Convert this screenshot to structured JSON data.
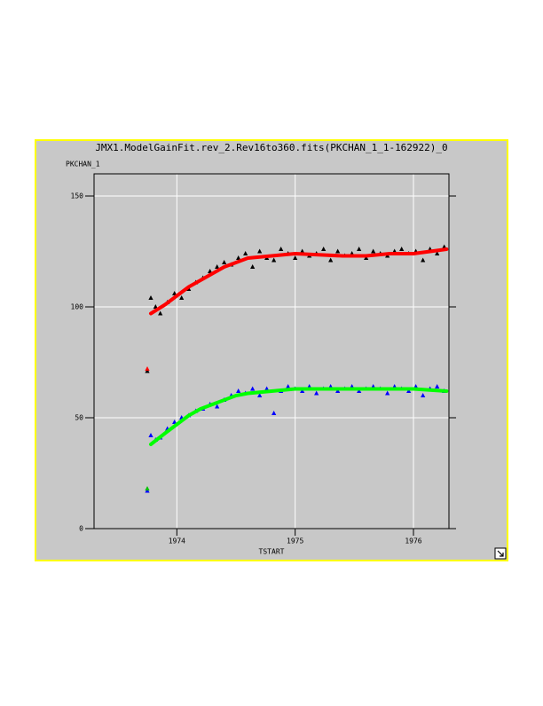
{
  "chart_data": {
    "type": "scatter",
    "title": "JMX1.ModelGainFit.rev_2.Rev16to360.fits(PKCHAN_1_1-162922)_0",
    "y_label": "PKCHAN_1",
    "x_label": "TSTART",
    "xlim": [
      1973.3,
      1976.3
    ],
    "ylim": [
      0,
      160
    ],
    "xticks": [
      1974,
      1975,
      1976
    ],
    "yticks": [
      0,
      50,
      100,
      150
    ],
    "grid": true,
    "series": [
      {
        "color": "#000000",
        "marker": "triangle",
        "x": [
          1973.75,
          1973.78,
          1973.82,
          1973.86,
          1973.92,
          1973.98,
          1974.04,
          1974.1,
          1974.16,
          1974.22,
          1974.28,
          1974.34,
          1974.4,
          1974.46,
          1974.52,
          1974.58,
          1974.64,
          1974.7,
          1974.76,
          1974.82,
          1974.88,
          1974.94,
          1975.0,
          1975.06,
          1975.12,
          1975.18,
          1975.24,
          1975.3,
          1975.36,
          1975.42,
          1975.48,
          1975.54,
          1975.6,
          1975.66,
          1975.72,
          1975.78,
          1975.84,
          1975.9,
          1975.96,
          1976.02,
          1976.08,
          1976.14,
          1976.2,
          1976.26
        ],
        "values": [
          71,
          104,
          100,
          97,
          102,
          106,
          104,
          108,
          111,
          113,
          116,
          118,
          120,
          119,
          122,
          124,
          118,
          125,
          122,
          121,
          126,
          124,
          122,
          125,
          123,
          124,
          126,
          121,
          125,
          123,
          124,
          126,
          122,
          125,
          124,
          123,
          125,
          126,
          124,
          125,
          121,
          126,
          124,
          127
        ]
      },
      {
        "color": "#0000ff",
        "marker": "triangle",
        "x": [
          1973.75,
          1973.78,
          1973.82,
          1973.86,
          1973.92,
          1973.98,
          1974.04,
          1974.1,
          1974.16,
          1974.22,
          1974.28,
          1974.34,
          1974.4,
          1974.46,
          1974.52,
          1974.58,
          1974.64,
          1974.7,
          1974.76,
          1974.82,
          1974.88,
          1974.94,
          1975.0,
          1975.06,
          1975.12,
          1975.18,
          1975.24,
          1975.3,
          1975.36,
          1975.42,
          1975.48,
          1975.54,
          1975.6,
          1975.66,
          1975.72,
          1975.78,
          1975.84,
          1975.9,
          1975.96,
          1976.02,
          1976.08,
          1976.14,
          1976.2,
          1976.26
        ],
        "values": [
          17,
          42,
          40,
          41,
          45,
          48,
          50,
          51,
          53,
          54,
          56,
          55,
          58,
          60,
          62,
          61,
          63,
          60,
          63,
          52,
          62,
          64,
          63,
          62,
          64,
          61,
          63,
          64,
          62,
          63,
          64,
          62,
          63,
          64,
          63,
          61,
          64,
          63,
          62,
          64,
          60,
          63,
          64,
          62
        ]
      },
      {
        "color": "#ff0000",
        "marker": "triangle",
        "x": [
          1973.75
        ],
        "values": [
          72
        ]
      },
      {
        "color": "#00c000",
        "marker": "triangle",
        "x": [
          1973.75
        ],
        "values": [
          18
        ]
      },
      {
        "color": "#ff0000",
        "marker": "line",
        "x": [
          1973.78,
          1973.9,
          1974.0,
          1974.1,
          1974.2,
          1974.3,
          1974.4,
          1974.5,
          1974.6,
          1974.8,
          1975.0,
          1975.2,
          1975.4,
          1975.6,
          1975.8,
          1976.0,
          1976.28
        ],
        "values": [
          97,
          101,
          105,
          109,
          112,
          115,
          118,
          120,
          122,
          123,
          124,
          123.5,
          123,
          123,
          124,
          124,
          126
        ]
      },
      {
        "color": "#00ff00",
        "marker": "line",
        "x": [
          1973.78,
          1973.9,
          1974.0,
          1974.1,
          1974.2,
          1974.3,
          1974.4,
          1974.5,
          1974.6,
          1974.8,
          1975.0,
          1975.2,
          1975.4,
          1975.6,
          1975.8,
          1976.0,
          1976.28
        ],
        "values": [
          38,
          43,
          47,
          51,
          54,
          56,
          58,
          60,
          61,
          62,
          63,
          63,
          63,
          63,
          63,
          63,
          62
        ]
      }
    ]
  }
}
